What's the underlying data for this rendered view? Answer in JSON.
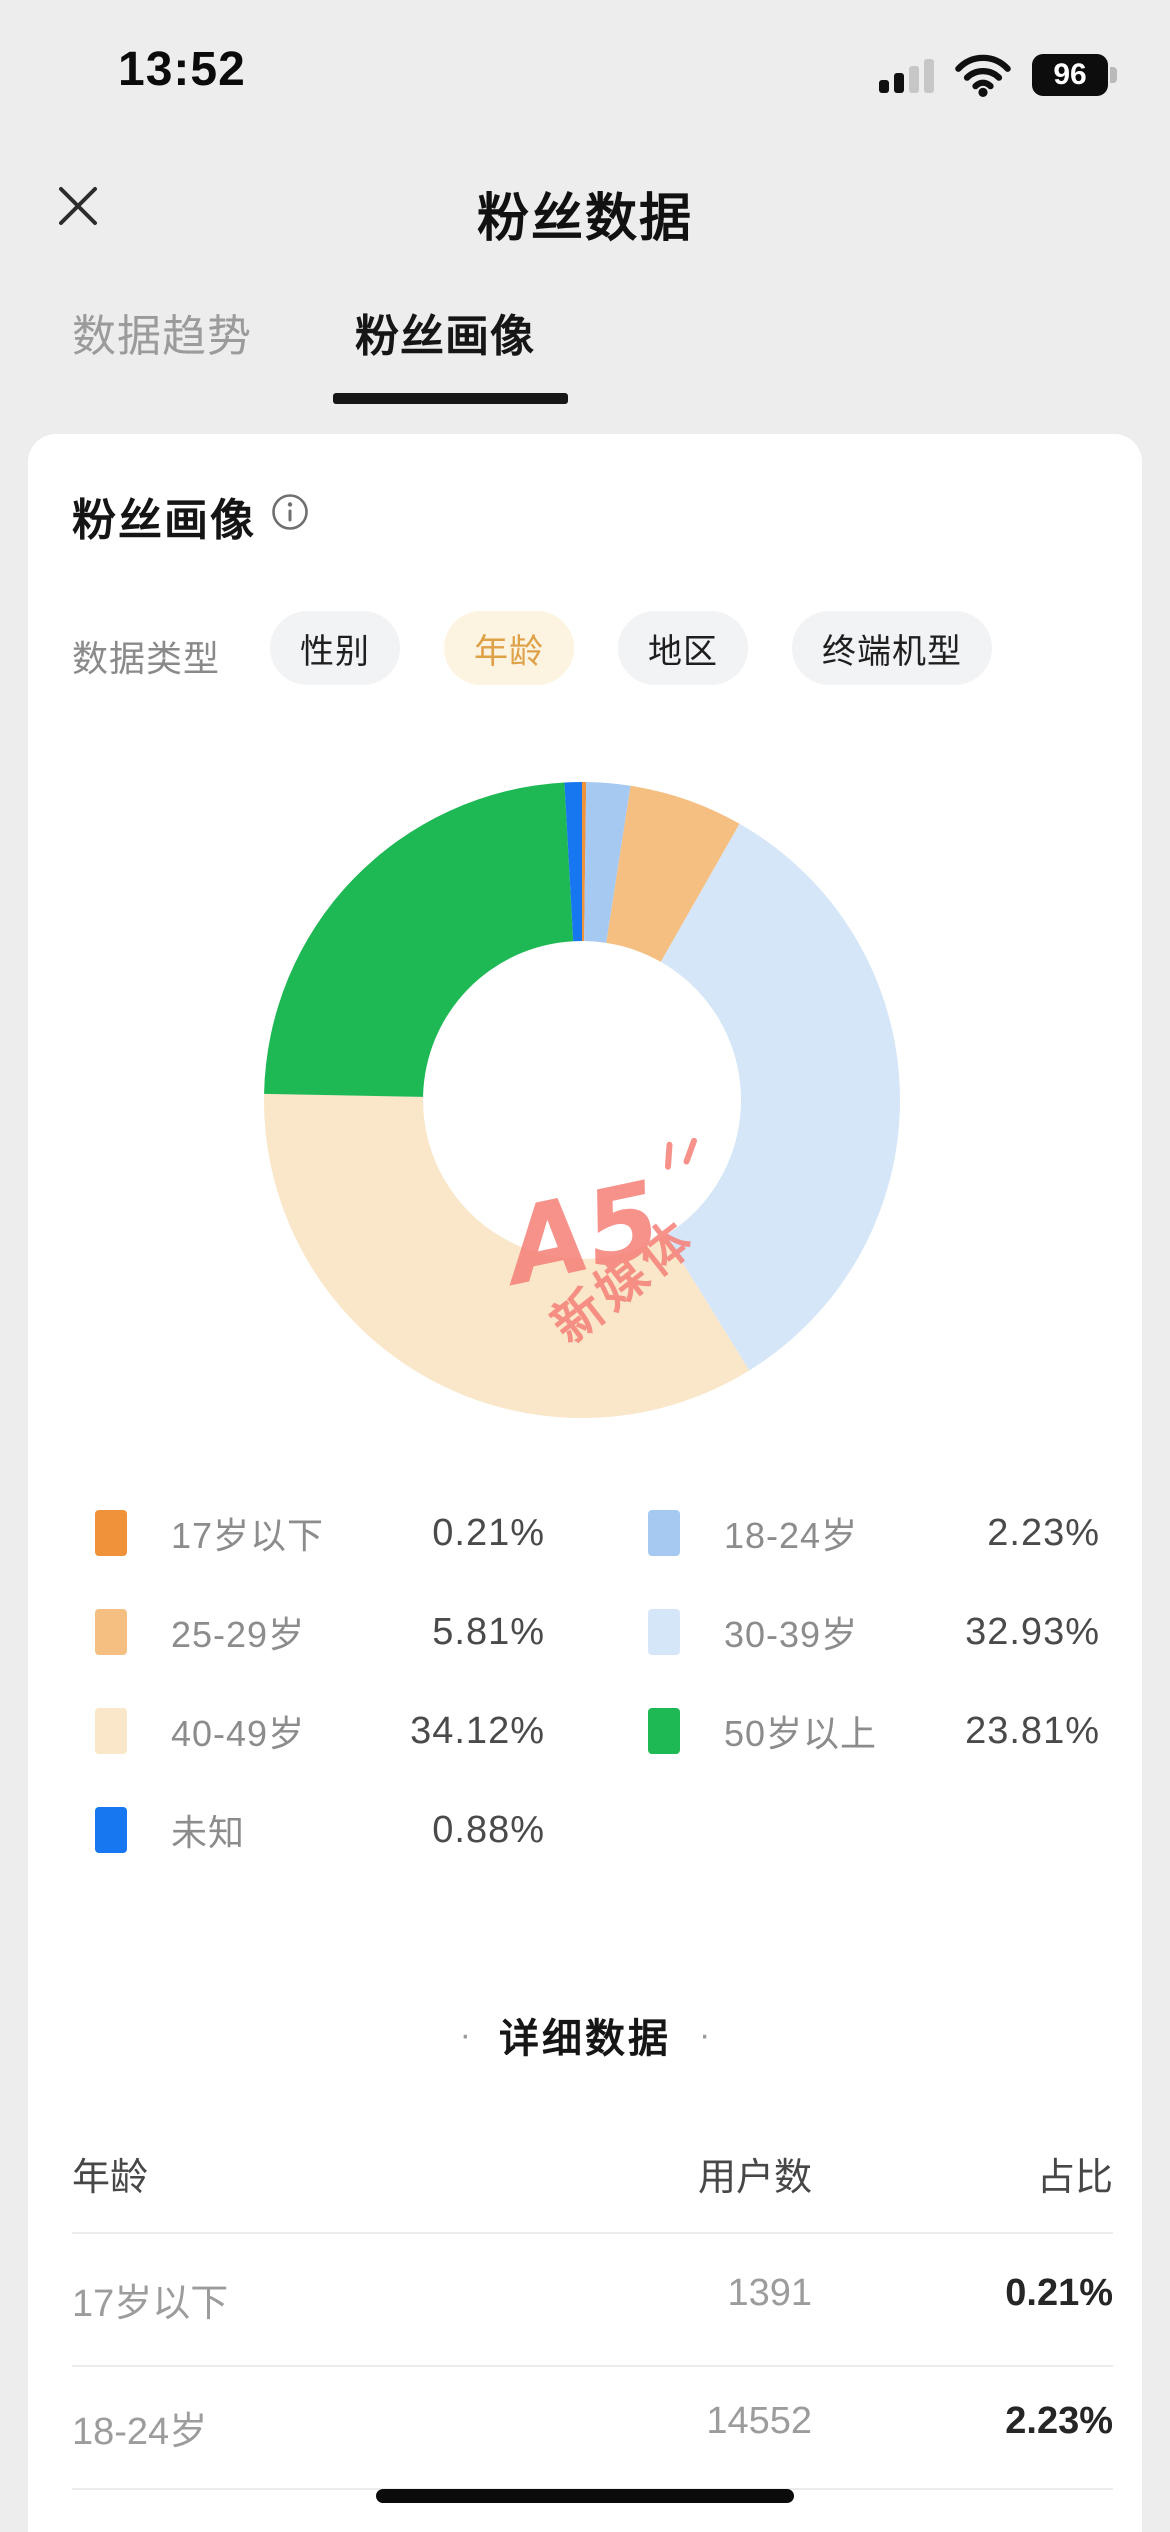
{
  "status_bar": {
    "time": "13:52",
    "battery_percent": "96"
  },
  "header": {
    "title": "粉丝数据"
  },
  "tabs": [
    {
      "label": "数据趋势",
      "active": false
    },
    {
      "label": "粉丝画像",
      "active": true
    }
  ],
  "card": {
    "title": "粉丝画像",
    "filter_label": "数据类型",
    "filters": [
      {
        "label": "性别",
        "selected": false
      },
      {
        "label": "年龄",
        "selected": true
      },
      {
        "label": "地区",
        "selected": false
      },
      {
        "label": "终端机型",
        "selected": false
      }
    ],
    "filter_colors": {
      "selected_bg": "#fdf3e1",
      "selected_text": "#dfa148",
      "normal_bg": "#f2f3f5"
    },
    "watermark": {
      "line1": "A5",
      "line2": "新媒体",
      "color": "#f5837a"
    },
    "legend": [
      {
        "label": "17岁以下",
        "value": "0.21%",
        "color": "#f0923a"
      },
      {
        "label": "18-24岁",
        "value": "2.23%",
        "color": "#a6c9f2"
      },
      {
        "label": "25-29岁",
        "value": "5.81%",
        "color": "#f6bf82"
      },
      {
        "label": "30-39岁",
        "value": "32.93%",
        "color": "#d5e6f8"
      },
      {
        "label": "40-49岁",
        "value": "34.12%",
        "color": "#fae6c8"
      },
      {
        "label": "50岁以上",
        "value": "23.81%",
        "color": "#1eb854"
      },
      {
        "label": "未知",
        "value": "0.88%",
        "color": "#1677f0"
      }
    ],
    "detail": {
      "dot": "·",
      "title": "详细数据"
    },
    "table": {
      "headers": [
        "年龄",
        "用户数",
        "占比"
      ],
      "rows": [
        {
          "age": "17岁以下",
          "users": "1391",
          "ratio": "0.21%"
        },
        {
          "age": "18-24岁",
          "users": "14552",
          "ratio": "2.23%"
        }
      ]
    }
  },
  "chart_data": {
    "type": "pie",
    "title": "粉丝画像 - 年龄分布",
    "categories": [
      "17岁以下",
      "18-24岁",
      "25-29岁",
      "30-39岁",
      "40-49岁",
      "50岁以上",
      "未知"
    ],
    "values": [
      0.21,
      2.23,
      5.81,
      32.93,
      34.12,
      23.81,
      0.88
    ],
    "unit": "%",
    "colors": [
      "#f0923a",
      "#a6c9f2",
      "#f6bf82",
      "#d5e6f8",
      "#fae6c8",
      "#1eb854",
      "#1677f0"
    ],
    "donut_hole_ratio": 0.5,
    "start_angle": "12-oclock",
    "direction": "clockwise",
    "legend_position": "below-two-columns"
  }
}
